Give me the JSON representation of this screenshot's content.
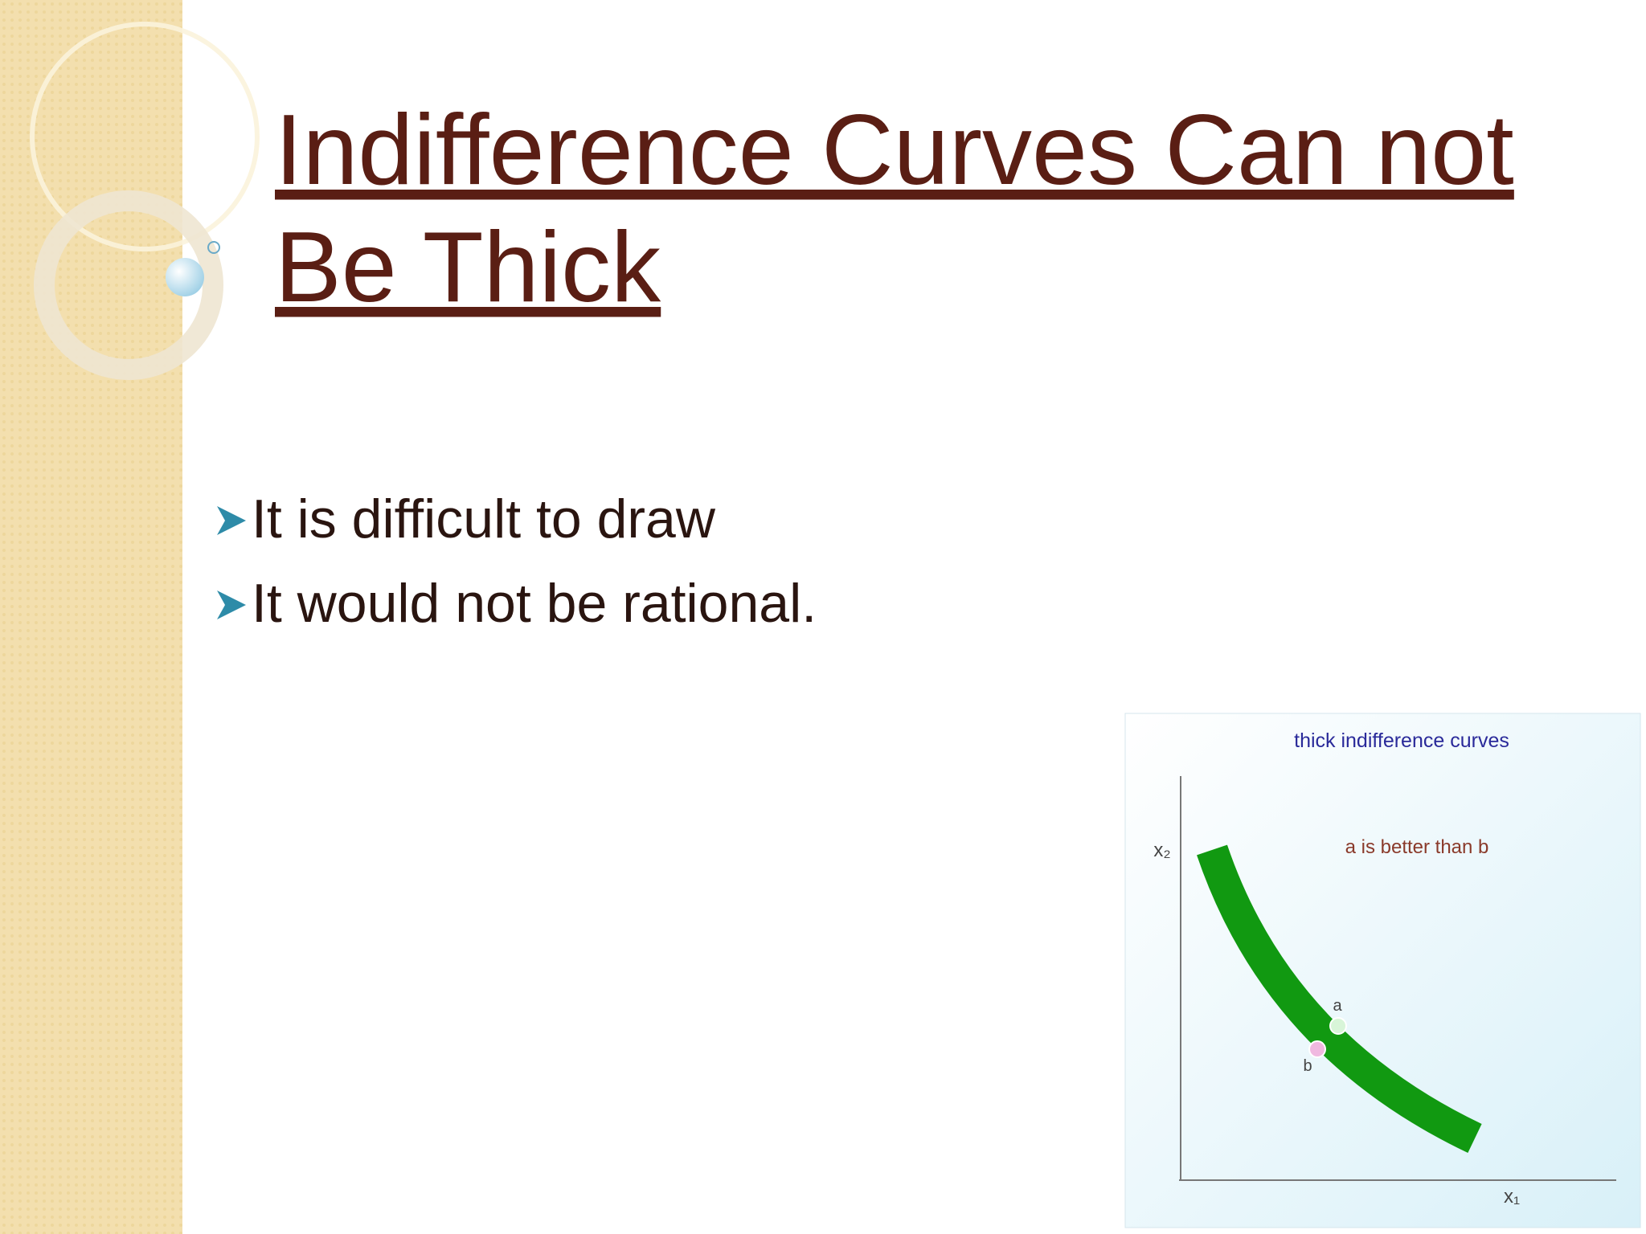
{
  "slide": {
    "title": "Indifference Curves Can not Be Thick",
    "title_lines": [
      "Indifference Curves Can not",
      "Be Thick"
    ],
    "bullets": [
      "It is difficult to draw",
      "It would not be rational."
    ],
    "figure": {
      "title": "thick indifference curves",
      "note": "a is better than b",
      "y_axis_label": "x₂",
      "x_axis_label": "x₁",
      "point_labels": [
        "a",
        "b"
      ]
    }
  }
}
